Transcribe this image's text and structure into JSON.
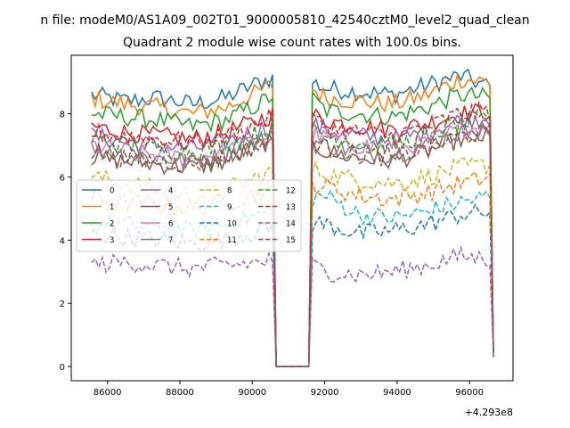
{
  "chart_data": {
    "type": "line",
    "suptitle": "n file: modeM0/AS1A09_002T01_9000005810_42540cztM0_level2_quad_clean",
    "title": "Quadrant 2 module wise count rates with 100.0s bins.",
    "xlabel": "",
    "ylabel": "",
    "x_offset_label": "+4.293e8",
    "xlim": [
      85000,
      97200
    ],
    "ylim": [
      -0.45,
      9.85
    ],
    "xticks": [
      "86000",
      "88000",
      "90000",
      "92000",
      "94000",
      "96000"
    ],
    "xtick_values": [
      86000,
      88000,
      90000,
      92000,
      94000,
      96000
    ],
    "yticks": [
      "0",
      "2",
      "4",
      "6",
      "8"
    ],
    "ytick_values": [
      0,
      2,
      4,
      6,
      8
    ],
    "legend": {
      "location": "center-left",
      "columns": 4
    },
    "gap": {
      "start": 90560,
      "end": 91660,
      "value": 0
    },
    "x_range": [
      85560,
      96660
    ],
    "bin_seconds": 100,
    "series": [
      {
        "name": "0",
        "color": "#1f77b4",
        "dash": "solid",
        "levels": [
          8.6,
          8.4,
          8.5,
          8.3,
          8.5,
          9.0,
          9.3,
          8.8,
          8.7,
          8.6,
          8.9,
          9.2,
          8.8
        ]
      },
      {
        "name": "1",
        "color": "#ff7f0e",
        "dash": "solid",
        "levels": [
          8.5,
          8.3,
          8.2,
          8.0,
          8.2,
          8.7,
          9.2,
          8.5,
          8.4,
          8.3,
          8.6,
          9.1,
          9.0
        ]
      },
      {
        "name": "2",
        "color": "#2ca02c",
        "dash": "solid",
        "levels": [
          8.0,
          7.9,
          7.8,
          7.6,
          7.8,
          8.3,
          9.0,
          8.1,
          8.0,
          7.9,
          8.2,
          8.6,
          8.5
        ]
      },
      {
        "name": "3",
        "color": "#d62728",
        "dash": "solid",
        "levels": [
          7.6,
          7.4,
          7.3,
          7.2,
          7.4,
          7.8,
          8.2,
          7.8,
          7.6,
          7.5,
          7.7,
          8.0,
          8.1
        ]
      },
      {
        "name": "4",
        "color": "#9467bd",
        "dash": "solid",
        "levels": [
          7.3,
          7.1,
          7.0,
          6.9,
          7.1,
          7.5,
          7.9,
          7.5,
          7.3,
          7.2,
          7.4,
          7.8,
          7.9
        ]
      },
      {
        "name": "5",
        "color": "#8c564b",
        "dash": "solid",
        "levels": [
          6.6,
          6.5,
          6.4,
          6.3,
          6.5,
          7.0,
          7.4,
          6.8,
          6.6,
          6.5,
          6.8,
          7.2,
          7.3
        ]
      },
      {
        "name": "6",
        "color": "#e377c2",
        "dash": "solid",
        "levels": [
          7.0,
          6.8,
          6.7,
          6.6,
          6.8,
          7.2,
          7.6,
          7.2,
          7.0,
          6.9,
          7.1,
          7.5,
          7.6
        ]
      },
      {
        "name": "7",
        "color": "#7f7f7f",
        "dash": "solid",
        "levels": [
          6.9,
          6.7,
          6.6,
          6.5,
          6.7,
          7.1,
          7.3,
          7.0,
          6.8,
          6.7,
          7.0,
          7.4,
          7.5
        ]
      },
      {
        "name": "8",
        "color": "#bcbd22",
        "dash": "dashed",
        "levels": [
          6.0,
          5.8,
          5.6,
          5.4,
          5.6,
          6.0,
          6.4,
          6.1,
          5.9,
          5.8,
          6.0,
          6.3,
          6.4
        ]
      },
      {
        "name": "9",
        "color": "#17becf",
        "dash": "dashed",
        "levels": [
          4.6,
          4.5,
          4.4,
          4.3,
          4.5,
          4.8,
          5.2,
          5.4,
          4.8,
          4.7,
          4.9,
          5.2,
          5.4
        ]
      },
      {
        "name": "10",
        "color": "#1f77b4",
        "dash": "dashed",
        "levels": [
          4.2,
          4.1,
          4.0,
          3.9,
          4.0,
          4.3,
          4.6,
          4.5,
          4.2,
          4.3,
          4.5,
          4.8,
          4.9
        ]
      },
      {
        "name": "11",
        "color": "#ff7f0e",
        "dash": "dashed",
        "levels": [
          5.3,
          5.2,
          5.1,
          5.0,
          5.2,
          5.5,
          5.9,
          5.7,
          5.4,
          5.3,
          5.5,
          5.8,
          6.0
        ]
      },
      {
        "name": "12",
        "color": "#2ca02c",
        "dash": "dashed",
        "levels": [
          7.2,
          7.0,
          6.9,
          6.8,
          7.0,
          7.4,
          7.9,
          7.3,
          7.1,
          7.0,
          7.3,
          7.7,
          7.8
        ]
      },
      {
        "name": "13",
        "color": "#d62728",
        "dash": "dashed",
        "levels": [
          7.4,
          7.3,
          7.2,
          7.1,
          7.3,
          7.7,
          8.2,
          7.6,
          7.4,
          7.3,
          7.6,
          8.0,
          8.1
        ]
      },
      {
        "name": "14",
        "color": "#9467bd",
        "dash": "dashed",
        "levels": [
          3.2,
          3.3,
          3.2,
          3.1,
          3.2,
          3.3,
          3.5,
          3.0,
          2.9,
          3.0,
          3.2,
          3.5,
          3.4
        ]
      },
      {
        "name": "15",
        "color": "#8c564b",
        "dash": "dashed",
        "levels": [
          6.8,
          6.6,
          6.5,
          6.4,
          6.6,
          7.0,
          7.4,
          6.9,
          6.7,
          6.6,
          6.9,
          7.3,
          7.4
        ]
      }
    ]
  }
}
